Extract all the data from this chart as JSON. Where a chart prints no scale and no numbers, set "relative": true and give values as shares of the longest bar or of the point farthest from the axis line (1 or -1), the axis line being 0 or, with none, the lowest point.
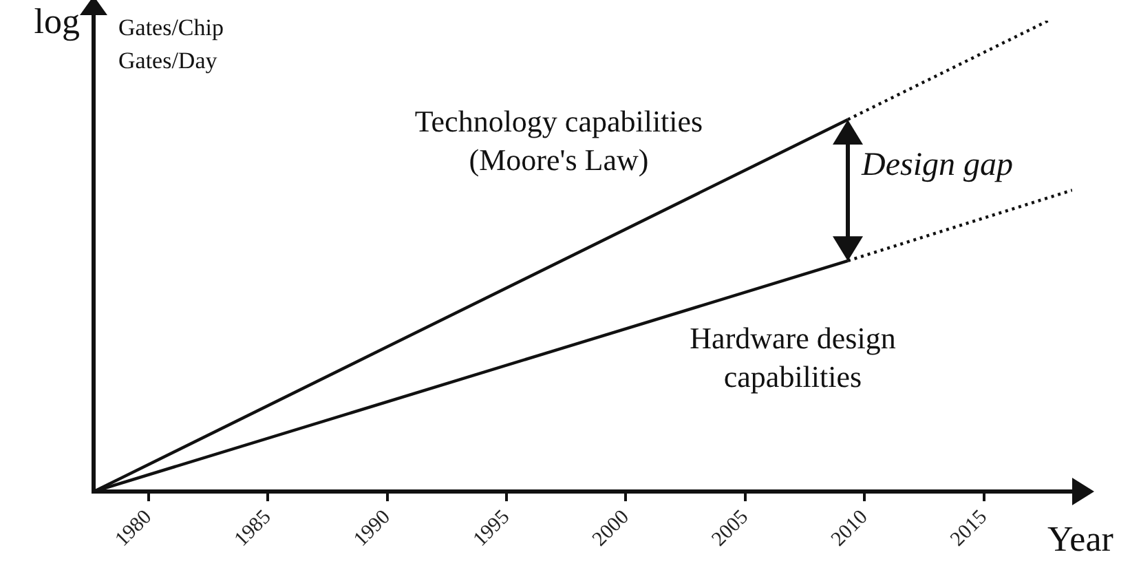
{
  "chart_data": {
    "type": "line",
    "relative": true,
    "xlabel": "Year",
    "ylabel": "log",
    "xlim": [
      1977.7,
      2018.7
    ],
    "xticks": [
      1980,
      1985,
      1990,
      1995,
      2000,
      2005,
      2010,
      2015
    ],
    "marker": "none",
    "grid": false,
    "legend": false,
    "series": [
      {
        "name": "Technology capabilities (Moore's Law)",
        "color": "#111111",
        "x": [
          1977.7,
          2009.3
        ],
        "values": [
          0,
          0.79
        ]
      },
      {
        "color": "#111111",
        "x": [
          2009.3,
          2017.7
        ],
        "values": [
          0.79,
          1
        ],
        "line_style": "dotted"
      },
      {
        "name": "Hardware design capabilities",
        "color": "#111111",
        "x": [
          1977.7,
          2009.3
        ],
        "values": [
          0,
          0.49
        ]
      },
      {
        "color": "#111111",
        "x": [
          2009.3,
          2018.7
        ],
        "values": [
          0.49,
          0.64
        ],
        "line_style": "dotted"
      }
    ],
    "annotations": [
      "Gates/Chip",
      "Gates/Day",
      "Design gap"
    ]
  }
}
